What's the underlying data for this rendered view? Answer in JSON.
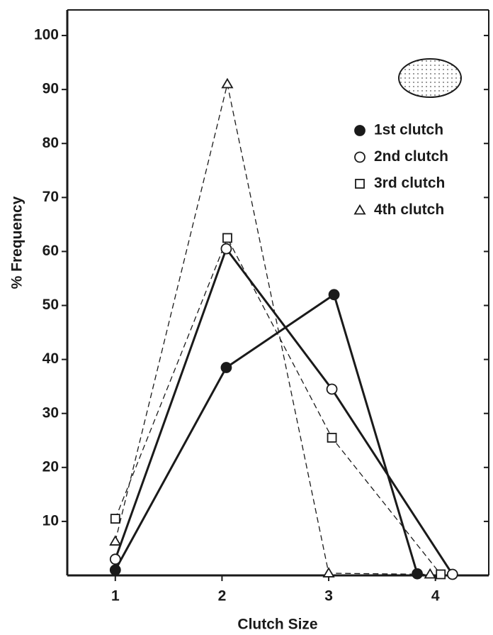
{
  "chart_data": {
    "type": "line",
    "xlabel": "Clutch Size",
    "ylabel": "% Frequency",
    "xlim": [
      0.55,
      4.5
    ],
    "ylim": [
      0,
      105
    ],
    "xticks": [
      1,
      2,
      3,
      4
    ],
    "yticks": [
      10,
      20,
      30,
      40,
      50,
      60,
      70,
      80,
      90,
      100
    ],
    "legend": "upper right",
    "series": [
      {
        "name": "1st clutch",
        "color": "#1a1a1a",
        "marker": "filled-circle",
        "linestyle": "solid",
        "x": [
          1.0,
          2.04,
          3.05,
          3.83
        ],
        "values": [
          1,
          38.5,
          52,
          0.3
        ]
      },
      {
        "name": "2nd clutch",
        "color": "#1a1a1a",
        "marker": "open-circle",
        "linestyle": "solid",
        "x": [
          1.0,
          2.04,
          3.03,
          4.16
        ],
        "values": [
          3,
          60.5,
          34.5,
          0.2
        ]
      },
      {
        "name": "3rd clutch",
        "color": "#1a1a1a",
        "marker": "open-square",
        "linestyle": "dashed",
        "x": [
          1.0,
          2.05,
          3.03,
          4.05
        ],
        "values": [
          10.5,
          62.5,
          25.5,
          0.2
        ]
      },
      {
        "name": "4th clutch",
        "color": "#1a1a1a",
        "marker": "open-triangle",
        "linestyle": "dashed",
        "x": [
          1.0,
          2.05,
          3.0,
          3.95
        ],
        "values": [
          6.3,
          91,
          0.4,
          0.2
        ]
      }
    ]
  }
}
